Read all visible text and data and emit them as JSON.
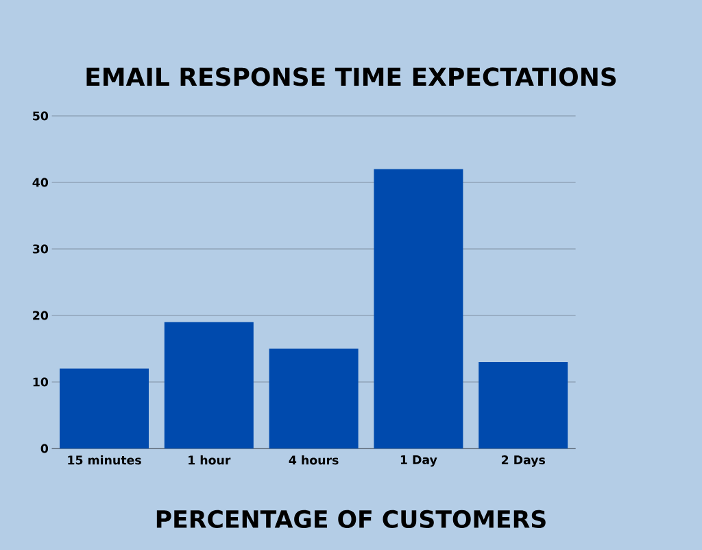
{
  "chart_data": {
    "type": "bar",
    "title": "EMAIL RESPONSE TIME EXPECTATIONS",
    "xlabel": "PERCENTAGE OF CUSTOMERS",
    "categories": [
      "15 minutes",
      "1 hour",
      "4 hours",
      "1 Day",
      "2 Days"
    ],
    "values": [
      12,
      19,
      15,
      42,
      13
    ],
    "color": "#004aad",
    "ylim": [
      0,
      50
    ],
    "yticks": [
      0,
      10,
      20,
      30,
      40,
      50
    ],
    "grid": "y"
  }
}
